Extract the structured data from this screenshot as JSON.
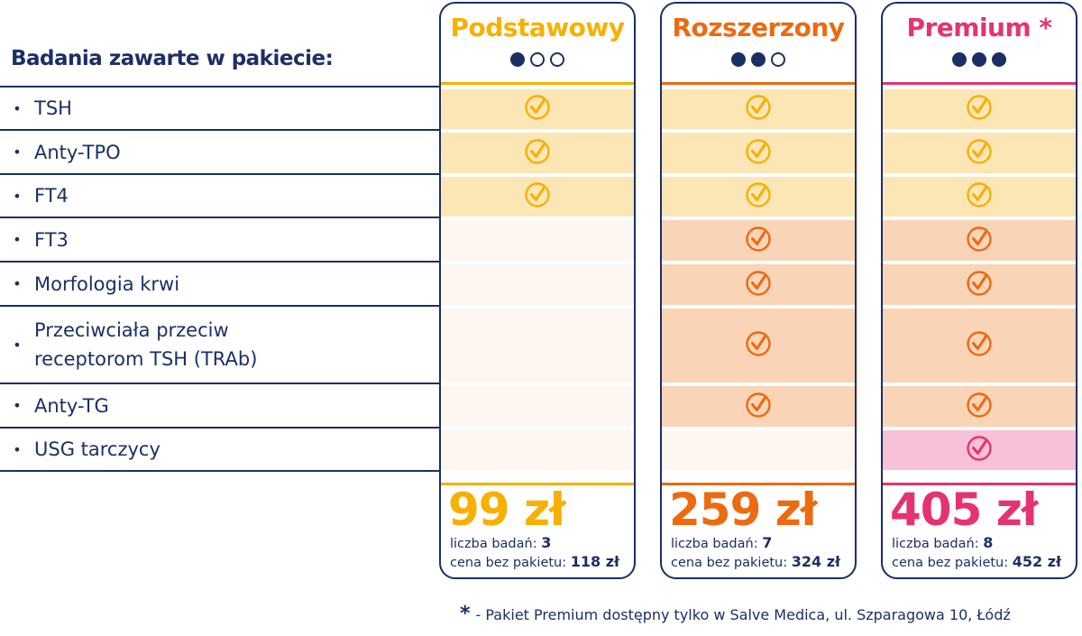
{
  "title": "Badania zawarte w pakiecie:",
  "colors": {
    "navy": "#1b2f64",
    "yellow": "#f7b000",
    "orange": "#ec6a10",
    "pink": "#e5336f",
    "yellow_fill": "#fce6b6",
    "orange_fill": "#f9d4b7",
    "pink_fill": "#f7c1d7",
    "empty_fill": "#fef6f0"
  },
  "rows": [
    {
      "label": "TSH",
      "tier": "yellow",
      "included": [
        true,
        true,
        true
      ]
    },
    {
      "label": "Anty-TPO",
      "tier": "yellow",
      "included": [
        true,
        true,
        true
      ]
    },
    {
      "label": "FT4",
      "tier": "yellow",
      "included": [
        true,
        true,
        true
      ]
    },
    {
      "label": "FT3",
      "tier": "orange",
      "included": [
        false,
        true,
        true
      ]
    },
    {
      "label": "Morfologia krwi",
      "tier": "orange",
      "included": [
        false,
        true,
        true
      ]
    },
    {
      "label": "Przeciwciała przeciw receptorom TSH (TRAb)",
      "tier": "orange",
      "included": [
        false,
        true,
        true
      ]
    },
    {
      "label": "Anty-TG",
      "tier": "orange",
      "included": [
        false,
        true,
        true
      ]
    },
    {
      "label": "USG tarczycy",
      "tier": "pink",
      "included": [
        false,
        false,
        true
      ]
    }
  ],
  "plans": [
    {
      "name": "Podstawowy",
      "color": "yellow",
      "level": 1,
      "price": "99 zł",
      "count_label": "liczba badań:",
      "count": "3",
      "regular_label": "cena bez pakietu:",
      "regular_price": "118 zł"
    },
    {
      "name": "Rozszerzony",
      "color": "orange",
      "level": 2,
      "price": "259 zł",
      "count_label": "liczba badań:",
      "count": "7",
      "regular_label": "cena bez pakietu:",
      "regular_price": "324 zł"
    },
    {
      "name": "Premium *",
      "color": "pink",
      "level": 3,
      "price": "405 zł",
      "count_label": "liczba badań:",
      "count": "8",
      "regular_label": "cena bez pakietu:",
      "regular_price": "452 zł"
    }
  ],
  "footnote": {
    "star": "*",
    "text": "- Pakiet Premium dostępny tylko w Salve Medica, ul. Szparagowa 10, Łódź"
  },
  "icons": {
    "included": "check-circle-icon",
    "level": "dot-icon"
  }
}
